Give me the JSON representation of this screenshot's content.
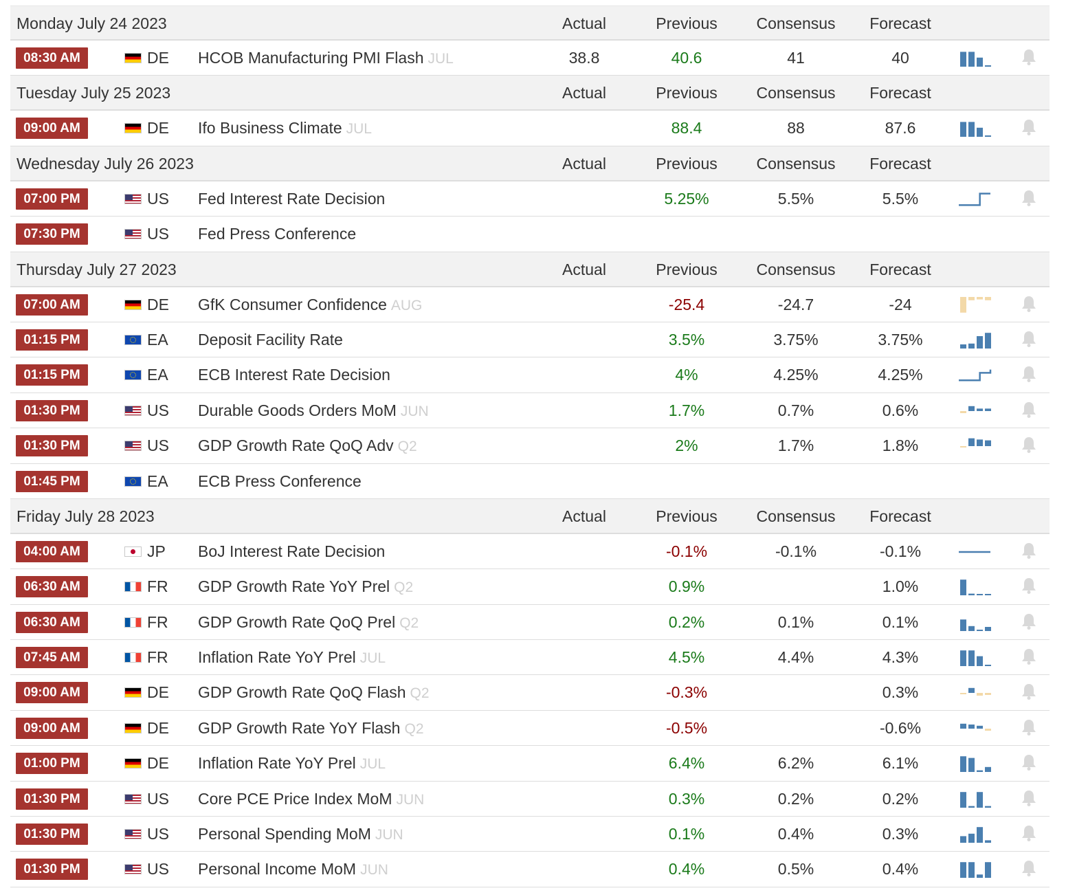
{
  "columns": {
    "actual": "Actual",
    "previous": "Previous",
    "consensus": "Consensus",
    "forecast": "Forecast"
  },
  "colors": {
    "time_badge": "#a5342f",
    "positive": "#1a7a1a",
    "negative": "#8b0000",
    "spark_blue": "#4a7fb0",
    "spark_tan": "#f3d9a8",
    "period": "#cfcfcf"
  },
  "days": [
    {
      "date": "Monday July 24 2023",
      "events": [
        {
          "time": "08:30 AM",
          "flag": "DE",
          "country": "DE",
          "event": "HCOB Manufacturing PMI Flash",
          "period": "JUL",
          "actual": "38.8",
          "previous": "40.6",
          "previous_trend": "pos",
          "consensus": "41",
          "forecast": "40",
          "spark": "bars",
          "spark_values": [
            0.9,
            0.9,
            0.55,
            0.05
          ]
        }
      ]
    },
    {
      "date": "Tuesday July 25 2023",
      "events": [
        {
          "time": "09:00 AM",
          "flag": "DE",
          "country": "DE",
          "event": "Ifo Business Climate",
          "period": "JUL",
          "actual": "",
          "previous": "88.4",
          "previous_trend": "pos",
          "consensus": "88",
          "forecast": "87.6",
          "spark": "bars",
          "spark_values": [
            0.9,
            0.9,
            0.55,
            0.05
          ]
        }
      ]
    },
    {
      "date": "Wednesday July 26 2023",
      "events": [
        {
          "time": "07:00 PM",
          "flag": "US",
          "country": "US",
          "event": "Fed Interest Rate Decision",
          "period": "",
          "actual": "",
          "previous": "5.25%",
          "previous_trend": "pos",
          "consensus": "5.5%",
          "forecast": "5.5%",
          "spark": "step",
          "spark_values": [
            0.15,
            0.15,
            0.85,
            0.85
          ]
        },
        {
          "time": "07:30 PM",
          "flag": "US",
          "country": "US",
          "event": "Fed Press Conference",
          "period": "",
          "actual": "",
          "previous": "",
          "previous_trend": "",
          "consensus": "",
          "forecast": "",
          "spark": "none",
          "spark_values": []
        }
      ]
    },
    {
      "date": "Thursday July 27 2023",
      "events": [
        {
          "time": "07:00 AM",
          "flag": "DE",
          "country": "DE",
          "event": "GfK Consumer Confidence",
          "period": "AUG",
          "actual": "",
          "previous": "-25.4",
          "previous_trend": "neg",
          "consensus": "-24.7",
          "forecast": "-24",
          "spark": "negbars",
          "spark_values": [
            0.95,
            0.2,
            0.15,
            0.2
          ]
        },
        {
          "time": "01:15 PM",
          "flag": "EA",
          "country": "EA",
          "event": "Deposit Facility Rate",
          "period": "",
          "actual": "",
          "previous": "3.5%",
          "previous_trend": "pos",
          "consensus": "3.75%",
          "forecast": "3.75%",
          "spark": "bars",
          "spark_values": [
            0.25,
            0.3,
            0.75,
            0.95
          ]
        },
        {
          "time": "01:15 PM",
          "flag": "EA",
          "country": "EA",
          "event": "ECB Interest Rate Decision",
          "period": "",
          "actual": "",
          "previous": "4%",
          "previous_trend": "pos",
          "consensus": "4.25%",
          "forecast": "4.25%",
          "spark": "step",
          "spark_values": [
            0.2,
            0.2,
            0.65,
            0.85
          ]
        },
        {
          "time": "01:30 PM",
          "flag": "US",
          "country": "US",
          "event": "Durable Goods Orders MoM",
          "period": "JUN",
          "actual": "",
          "previous": "1.7%",
          "previous_trend": "pos",
          "consensus": "0.7%",
          "forecast": "0.6%",
          "spark": "mixed",
          "spark_values": [
            -0.3,
            0.6,
            0.3,
            0.3
          ]
        },
        {
          "time": "01:30 PM",
          "flag": "US",
          "country": "US",
          "event": "GDP Growth Rate QoQ Adv",
          "period": "Q2",
          "actual": "",
          "previous": "2%",
          "previous_trend": "pos",
          "consensus": "1.7%",
          "forecast": "1.8%",
          "spark": "mixed",
          "spark_values": [
            -0.1,
            0.95,
            0.8,
            0.7
          ]
        },
        {
          "time": "01:45 PM",
          "flag": "EA",
          "country": "EA",
          "event": "ECB Press Conference",
          "period": "",
          "actual": "",
          "previous": "",
          "previous_trend": "",
          "consensus": "",
          "forecast": "",
          "spark": "none",
          "spark_values": []
        }
      ]
    },
    {
      "date": "Friday July 28 2023",
      "events": [
        {
          "time": "04:00 AM",
          "flag": "JP",
          "country": "JP",
          "event": "BoJ Interest Rate Decision",
          "period": "",
          "actual": "",
          "previous": "-0.1%",
          "previous_trend": "neg",
          "consensus": "-0.1%",
          "forecast": "-0.1%",
          "spark": "flat",
          "spark_values": [
            0.5,
            0.5,
            0.5,
            0.5
          ]
        },
        {
          "time": "06:30 AM",
          "flag": "FR",
          "country": "FR",
          "event": "GDP Growth Rate YoY Prel",
          "period": "Q2",
          "actual": "",
          "previous": "0.9%",
          "previous_trend": "pos",
          "consensus": "",
          "forecast": "1.0%",
          "spark": "bars",
          "spark_values": [
            0.95,
            0.1,
            0.05,
            0.05
          ]
        },
        {
          "time": "06:30 AM",
          "flag": "FR",
          "country": "FR",
          "event": "GDP Growth Rate QoQ Prel",
          "period": "Q2",
          "actual": "",
          "previous": "0.2%",
          "previous_trend": "pos",
          "consensus": "0.1%",
          "forecast": "0.1%",
          "spark": "bars",
          "spark_values": [
            0.7,
            0.3,
            0.0,
            0.25
          ]
        },
        {
          "time": "07:45 AM",
          "flag": "FR",
          "country": "FR",
          "event": "Inflation Rate YoY Prel",
          "period": "JUL",
          "actual": "",
          "previous": "4.5%",
          "previous_trend": "pos",
          "consensus": "4.4%",
          "forecast": "4.3%",
          "spark": "bars",
          "spark_values": [
            0.95,
            0.95,
            0.6,
            0.05
          ]
        },
        {
          "time": "09:00 AM",
          "flag": "DE",
          "country": "DE",
          "event": "GDP Growth Rate QoQ Flash",
          "period": "Q2",
          "actual": "",
          "previous": "-0.3%",
          "previous_trend": "neg",
          "consensus": "",
          "forecast": "0.3%",
          "spark": "mixed",
          "spark_values": [
            -0.05,
            0.6,
            -0.4,
            -0.3
          ]
        },
        {
          "time": "09:00 AM",
          "flag": "DE",
          "country": "DE",
          "event": "GDP Growth Rate YoY Flash",
          "period": "Q2",
          "actual": "",
          "previous": "-0.5%",
          "previous_trend": "neg",
          "consensus": "",
          "forecast": "-0.6%",
          "spark": "mixed",
          "spark_values": [
            0.6,
            0.5,
            0.35,
            -0.3
          ]
        },
        {
          "time": "01:00 PM",
          "flag": "DE",
          "country": "DE",
          "event": "Inflation Rate YoY Prel",
          "period": "JUL",
          "actual": "",
          "previous": "6.4%",
          "previous_trend": "pos",
          "consensus": "6.2%",
          "forecast": "6.1%",
          "spark": "bars",
          "spark_values": [
            0.95,
            0.85,
            0.1,
            0.3
          ]
        },
        {
          "time": "01:30 PM",
          "flag": "US",
          "country": "US",
          "event": "Core PCE Price Index MoM",
          "period": "JUN",
          "actual": "",
          "previous": "0.3%",
          "previous_trend": "pos",
          "consensus": "0.2%",
          "forecast": "0.2%",
          "spark": "bars",
          "spark_values": [
            0.95,
            0.1,
            0.95,
            0.1
          ]
        },
        {
          "time": "01:30 PM",
          "flag": "US",
          "country": "US",
          "event": "Personal Spending MoM",
          "period": "JUN",
          "actual": "",
          "previous": "0.1%",
          "previous_trend": "pos",
          "consensus": "0.4%",
          "forecast": "0.3%",
          "spark": "bars",
          "spark_values": [
            0.4,
            0.55,
            0.95,
            0.15
          ]
        },
        {
          "time": "01:30 PM",
          "flag": "US",
          "country": "US",
          "event": "Personal Income MoM",
          "period": "JUN",
          "actual": "",
          "previous": "0.4%",
          "previous_trend": "pos",
          "consensus": "0.5%",
          "forecast": "0.4%",
          "spark": "bars",
          "spark_values": [
            0.95,
            0.95,
            0.2,
            0.95
          ]
        }
      ]
    }
  ]
}
